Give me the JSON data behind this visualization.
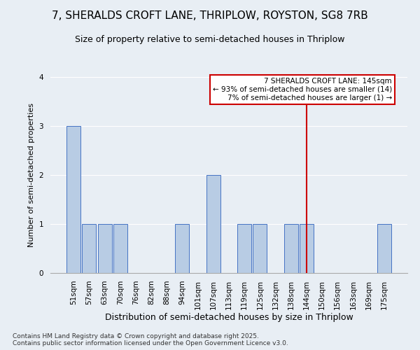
{
  "title": "7, SHERALDS CROFT LANE, THRIPLOW, ROYSTON, SG8 7RB",
  "subtitle": "Size of property relative to semi-detached houses in Thriplow",
  "xlabel": "Distribution of semi-detached houses by size in Thriplow",
  "ylabel": "Number of semi-detached properties",
  "categories": [
    "51sqm",
    "57sqm",
    "63sqm",
    "70sqm",
    "76sqm",
    "82sqm",
    "88sqm",
    "94sqm",
    "101sqm",
    "107sqm",
    "113sqm",
    "119sqm",
    "125sqm",
    "132sqm",
    "138sqm",
    "144sqm",
    "150sqm",
    "156sqm",
    "163sqm",
    "169sqm",
    "175sqm"
  ],
  "values": [
    3,
    1,
    1,
    1,
    0,
    0,
    0,
    1,
    0,
    2,
    0,
    1,
    1,
    0,
    1,
    1,
    0,
    0,
    0,
    0,
    1
  ],
  "bar_color": "#b8cce4",
  "bar_edge_color": "#4472c4",
  "vline_x": 15,
  "vline_color": "#cc0000",
  "annotation_text": "7 SHERALDS CROFT LANE: 145sqm\n← 93% of semi-detached houses are smaller (14)\n7% of semi-detached houses are larger (1) →",
  "annotation_box_color": "#cc0000",
  "annotation_bg": "#ffffff",
  "footer": "Contains HM Land Registry data © Crown copyright and database right 2025.\nContains public sector information licensed under the Open Government Licence v3.0.",
  "bg_color": "#e8eef4",
  "ylim": [
    0,
    4
  ],
  "yticks": [
    0,
    1,
    2,
    3,
    4
  ],
  "title_fontsize": 11,
  "subtitle_fontsize": 9,
  "xlabel_fontsize": 9,
  "ylabel_fontsize": 8,
  "tick_fontsize": 7.5,
  "footer_fontsize": 6.5,
  "ann_fontsize": 7.5
}
